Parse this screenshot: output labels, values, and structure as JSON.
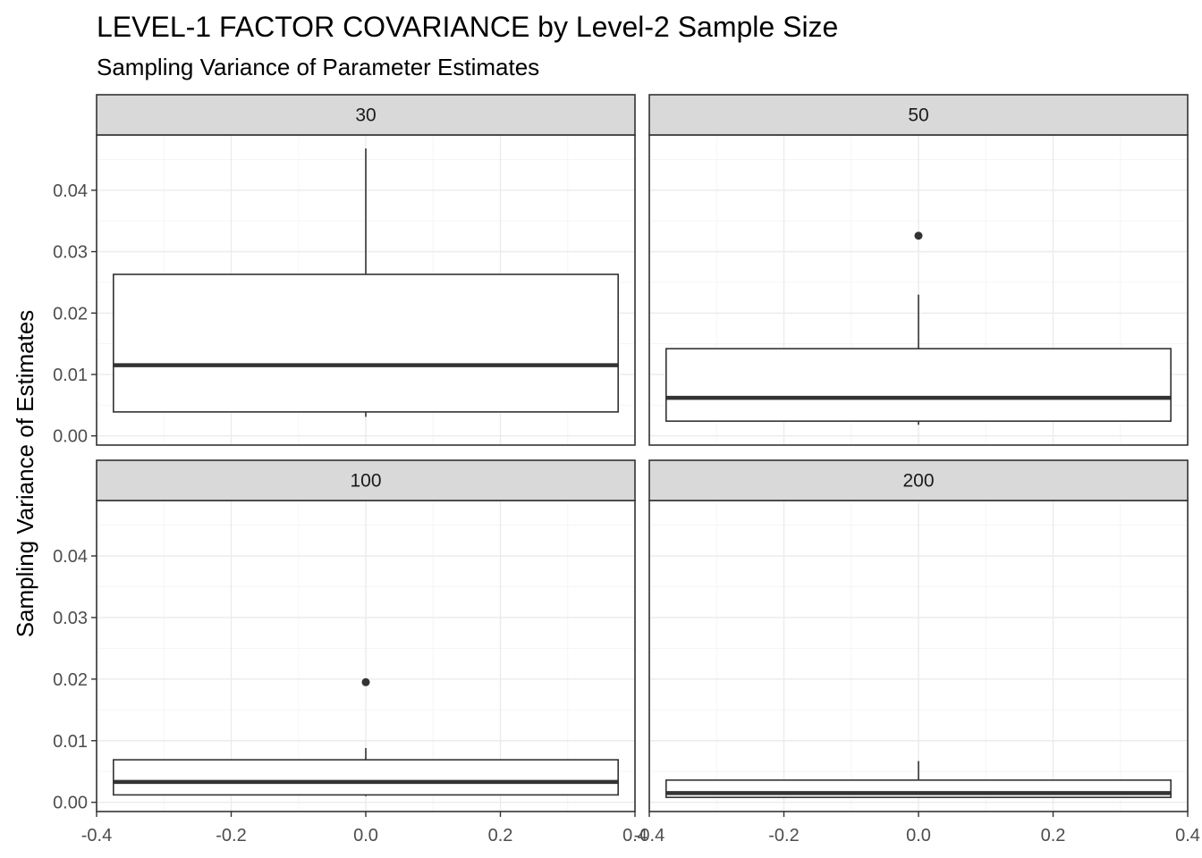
{
  "chart_data": {
    "type": "boxplot",
    "title": "LEVEL-1 FACTOR COVARIANCE by Level-2 Sample Size",
    "subtitle": "Sampling Variance of Parameter Estimates",
    "xlabel": "",
    "ylabel": "Sampling Variance of Estimates",
    "xlim": [
      -0.4,
      0.4
    ],
    "ylim": [
      -0.0015,
      0.049
    ],
    "x_ticks": [
      -0.4,
      -0.2,
      0.0,
      0.2,
      0.4
    ],
    "x_tick_labels": [
      "-0.4",
      "-0.2",
      "0.0",
      "0.2",
      "0.4"
    ],
    "y_ticks": [
      0.0,
      0.01,
      0.02,
      0.03,
      0.04
    ],
    "y_tick_labels": [
      "0.00",
      "0.01",
      "0.02",
      "0.03",
      "0.04"
    ],
    "grid": true,
    "legend": "none",
    "box_x_range": [
      -0.375,
      0.375
    ],
    "panels": [
      {
        "label": "30",
        "min": 0.0031,
        "q1": 0.0039,
        "median": 0.0115,
        "q3": 0.0263,
        "max": 0.0468,
        "outliers": []
      },
      {
        "label": "50",
        "min": 0.0018,
        "q1": 0.0024,
        "median": 0.0062,
        "q3": 0.0142,
        "max": 0.023,
        "outliers": [
          0.0326
        ]
      },
      {
        "label": "100",
        "min": 0.001,
        "q1": 0.0012,
        "median": 0.0033,
        "q3": 0.0069,
        "max": 0.0088,
        "outliers": [
          0.0195
        ]
      },
      {
        "label": "200",
        "min": 0.0007,
        "q1": 0.0008,
        "median": 0.0015,
        "q3": 0.0036,
        "max": 0.0067,
        "outliers": []
      }
    ]
  },
  "colors": {
    "strip_fill": "#d9d9d9",
    "panel_border": "#333333",
    "grid_major": "#ebebeb",
    "grid_minor": "#f5f5f5",
    "box_line": "#333333",
    "box_fill": "#ffffff"
  }
}
